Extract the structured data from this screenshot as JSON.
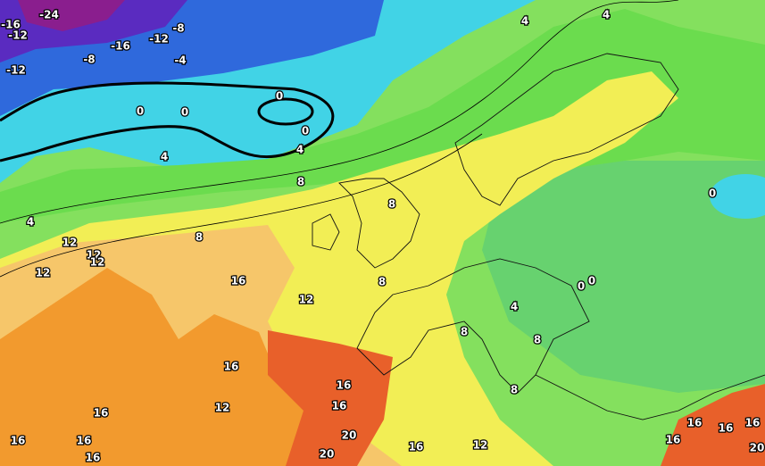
{
  "contour_labels": [
    -24,
    -16,
    -12,
    -8,
    -12,
    -16,
    -12,
    -8,
    -4,
    0,
    0,
    0,
    0,
    4,
    4,
    4,
    4,
    8,
    4,
    8,
    0,
    12,
    12,
    12,
    8,
    12,
    16,
    12,
    8,
    0,
    0,
    4,
    8,
    8,
    16,
    16,
    16,
    12,
    8,
    16,
    16,
    16,
    16,
    20,
    20,
    16,
    12,
    16,
    16,
    16,
    16,
    20
  ]
}
